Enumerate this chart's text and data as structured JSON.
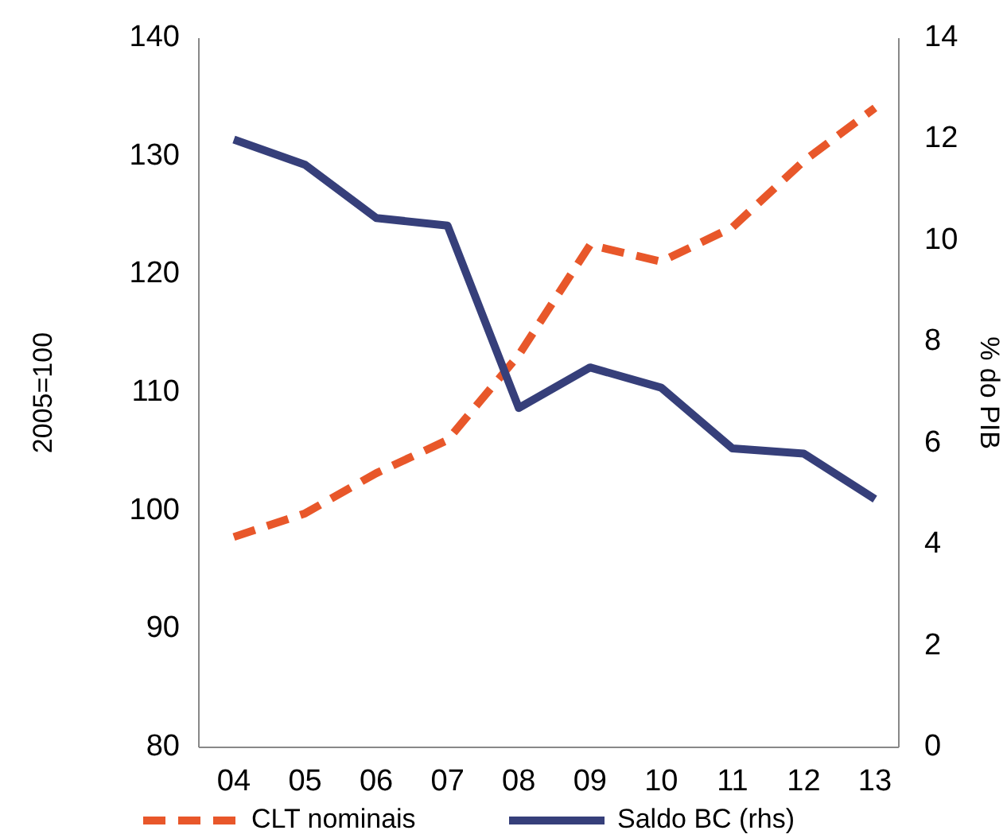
{
  "chart_data": {
    "type": "line",
    "ylabel": "2005=100",
    "y2label": "% do PIB",
    "categories": [
      "04",
      "05",
      "06",
      "07",
      "08",
      "09",
      "10",
      "11",
      "12",
      "13"
    ],
    "series": [
      {
        "name": "CLT nominais",
        "color": "#e8572a",
        "line_style": "dashed",
        "values": [
          97.8,
          99.8,
          103.2,
          106,
          113.2,
          122.5,
          121.1,
          124,
          129.6,
          134.1
        ]
      },
      {
        "name": "Saldo BC (rhs)",
        "color": "#363f7a",
        "line_style": "solid",
        "axis": "y2",
        "values": [
          12.0,
          11.5,
          10.45,
          10.3,
          6.7,
          7.5,
          7.1,
          5.9,
          5.8,
          4.9
        ]
      }
    ],
    "ylim": [
      80,
      140
    ],
    "yticks": [
      80,
      90,
      100,
      110,
      120,
      130,
      140
    ],
    "y2lim": [
      0,
      14
    ],
    "y2ticks": [
      0,
      2,
      4,
      6,
      8,
      10,
      12,
      14
    ],
    "legend": "bottom",
    "grid": false
  }
}
